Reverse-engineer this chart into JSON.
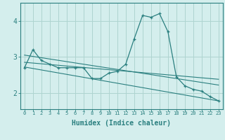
{
  "xlabel": "Humidex (Indice chaleur)",
  "bg_color": "#d4eeed",
  "line_color": "#2a7f7f",
  "grid_color": "#aed4d0",
  "x_ticks": [
    0,
    1,
    2,
    3,
    4,
    5,
    6,
    7,
    8,
    9,
    10,
    11,
    12,
    13,
    14,
    15,
    16,
    17,
    18,
    19,
    20,
    21,
    22,
    23
  ],
  "y_ticks": [
    2,
    3,
    4
  ],
  "ylim": [
    1.55,
    4.5
  ],
  "xlim": [
    -0.5,
    23.5
  ],
  "curve1_x": [
    0,
    1,
    2,
    3,
    4,
    5,
    6,
    7,
    8,
    9,
    10,
    11,
    12,
    13,
    14,
    15,
    16,
    17,
    18,
    19,
    20,
    21,
    22,
    23
  ],
  "curve1_y": [
    2.7,
    3.2,
    2.9,
    2.8,
    2.7,
    2.7,
    2.7,
    2.7,
    2.4,
    2.4,
    2.55,
    2.6,
    2.8,
    3.5,
    4.15,
    4.1,
    4.2,
    3.7,
    2.45,
    2.2,
    2.1,
    2.05,
    1.9,
    1.78
  ],
  "line2_x": [
    0,
    23
  ],
  "line2_y": [
    2.72,
    1.78
  ],
  "line3_x": [
    0,
    23
  ],
  "line3_y": [
    2.85,
    2.38
  ],
  "line4_x": [
    0,
    23
  ],
  "line4_y": [
    3.05,
    2.22
  ]
}
